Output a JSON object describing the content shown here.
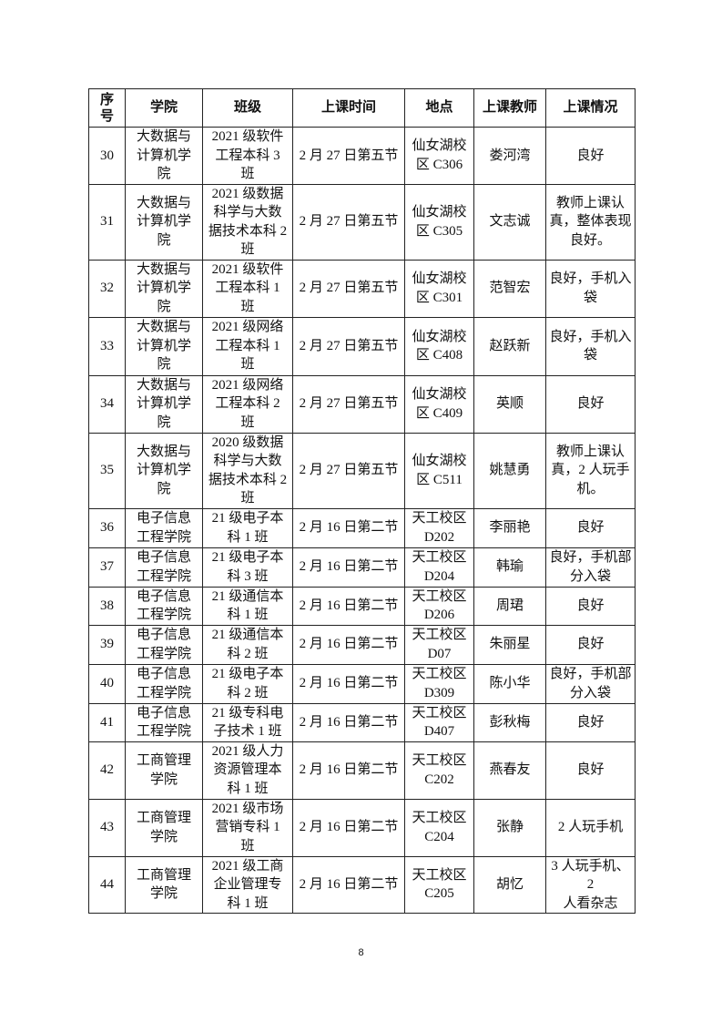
{
  "table": {
    "headers": [
      "序\n号",
      "学院",
      "班级",
      "上课时间",
      "地点",
      "上课教师",
      "上课情况"
    ],
    "rows": [
      [
        "30",
        "大数据与\n计算机学\n院",
        "2021 级软件\n工程本科 3\n班",
        "2 月 27 日第五节",
        "仙女湖校\n区 C306",
        "娄河湾",
        "良好"
      ],
      [
        "31",
        "大数据与\n计算机学\n院",
        "2021 级数据\n科学与大数\n据技术本科 2\n班",
        "2 月 27 日第五节",
        "仙女湖校\n区 C305",
        "文志诚",
        "教师上课认\n真，整体表现\n良好。"
      ],
      [
        "32",
        "大数据与\n计算机学\n院",
        "2021 级软件\n工程本科 1\n班",
        "2 月 27 日第五节",
        "仙女湖校\n区 C301",
        "范智宏",
        "良好，手机入\n袋"
      ],
      [
        "33",
        "大数据与\n计算机学\n院",
        "2021 级网络\n工程本科 1\n班",
        "2 月 27 日第五节",
        "仙女湖校\n区 C408",
        "赵跃新",
        "良好，手机入\n袋"
      ],
      [
        "34",
        "大数据与\n计算机学\n院",
        "2021 级网络\n工程本科 2\n班",
        "2 月 27 日第五节",
        "仙女湖校\n区 C409",
        "英顺",
        "良好"
      ],
      [
        "35",
        "大数据与\n计算机学\n院",
        "2020 级数据\n科学与大数\n据技术本科 2\n班",
        "2 月 27 日第五节",
        "仙女湖校\n区 C511",
        "姚慧勇",
        "教师上课认\n真，2 人玩手\n机。"
      ],
      [
        "36",
        "电子信息\n工程学院",
        "21 级电子本\n科 1 班",
        "2 月 16 日第二节",
        "天工校区\nD202",
        "李丽艳",
        "良好"
      ],
      [
        "37",
        "电子信息\n工程学院",
        "21 级电子本\n科 3 班",
        "2 月 16 日第二节",
        "天工校区\nD204",
        "韩瑜",
        "良好，手机部\n分入袋"
      ],
      [
        "38",
        "电子信息\n工程学院",
        "21 级通信本\n科 1 班",
        "2 月 16 日第二节",
        "天工校区\nD206",
        "周珺",
        "良好"
      ],
      [
        "39",
        "电子信息\n工程学院",
        "21 级通信本\n科 2 班",
        "2 月 16 日第二节",
        "天工校区\nD07",
        "朱丽星",
        "良好"
      ],
      [
        "40",
        "电子信息\n工程学院",
        "21 级电子本\n科 2 班",
        "2 月 16 日第二节",
        "天工校区\nD309",
        "陈小华",
        "良好，手机部\n分入袋"
      ],
      [
        "41",
        "电子信息\n工程学院",
        "21 级专科电\n子技术 1 班",
        "2 月 16 日第二节",
        "天工校区\nD407",
        "彭秋梅",
        "良好"
      ],
      [
        "42",
        "工商管理\n学院",
        "2021 级人力\n资源管理本\n科 1 班",
        "2 月 16 日第二节",
        "天工校区\nC202",
        "燕春友",
        "良好"
      ],
      [
        "43",
        "工商管理\n学院",
        "2021 级市场\n营销专科 1\n班",
        "2 月 16 日第二节",
        "天工校区\nC204",
        "张静",
        "2 人玩手机"
      ],
      [
        "44",
        "工商管理\n学院",
        "2021 级工商\n企业管理专\n科 1 班",
        "2 月 16 日第二节",
        "天工校区\nC205",
        "胡忆",
        "3 人玩手机、2\n人看杂志"
      ]
    ]
  },
  "page_number": "8"
}
